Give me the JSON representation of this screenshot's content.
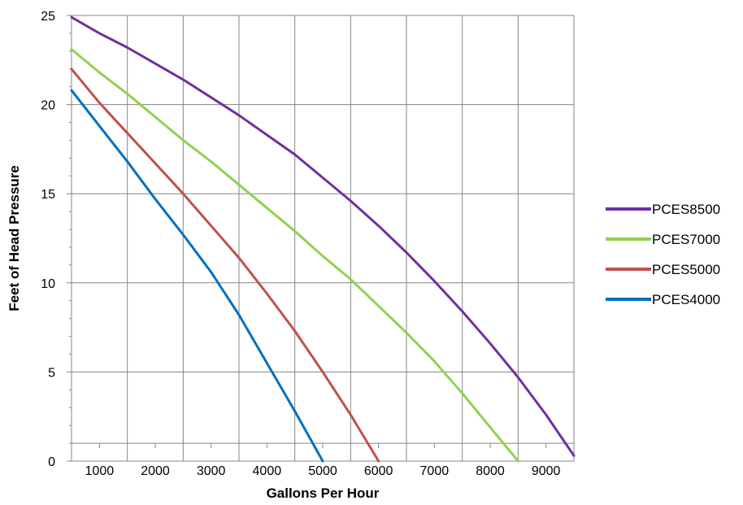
{
  "chart_data": {
    "type": "line",
    "title": "",
    "xlabel": "Gallons Per Hour",
    "ylabel": "Feet of Head Pressure",
    "xlim": [
      500,
      9500
    ],
    "ylim": [
      0,
      25
    ],
    "x_ticks": [
      1000,
      2000,
      3000,
      4000,
      5000,
      6000,
      7000,
      8000,
      9000
    ],
    "y_ticks": [
      0,
      5,
      10,
      15,
      20,
      25
    ],
    "grid": true,
    "legend_position": "right",
    "series": [
      {
        "name": "PCES8500",
        "color": "#7030a0",
        "points": [
          [
            500,
            24.9
          ],
          [
            1000,
            24.0
          ],
          [
            1500,
            23.2
          ],
          [
            2000,
            22.3
          ],
          [
            2500,
            21.4
          ],
          [
            3000,
            20.4
          ],
          [
            3500,
            19.4
          ],
          [
            4000,
            18.3
          ],
          [
            4500,
            17.2
          ],
          [
            5000,
            15.9
          ],
          [
            5500,
            14.6
          ],
          [
            6000,
            13.2
          ],
          [
            6500,
            11.7
          ],
          [
            7000,
            10.1
          ],
          [
            7500,
            8.4
          ],
          [
            8000,
            6.6
          ],
          [
            8500,
            4.7
          ],
          [
            9000,
            2.6
          ],
          [
            9500,
            0.3
          ]
        ]
      },
      {
        "name": "PCES7000",
        "color": "#92d050",
        "points": [
          [
            500,
            23.1
          ],
          [
            1000,
            21.8
          ],
          [
            1500,
            20.6
          ],
          [
            2000,
            19.3
          ],
          [
            2500,
            18.0
          ],
          [
            3000,
            16.8
          ],
          [
            3500,
            15.5
          ],
          [
            4000,
            14.2
          ],
          [
            4500,
            12.9
          ],
          [
            5000,
            11.5
          ],
          [
            5500,
            10.2
          ],
          [
            6000,
            8.7
          ],
          [
            6500,
            7.2
          ],
          [
            7000,
            5.6
          ],
          [
            7500,
            3.8
          ],
          [
            8000,
            1.9
          ],
          [
            8500,
            0.0
          ]
        ]
      },
      {
        "name": "PCES5000",
        "color": "#c0504d",
        "points": [
          [
            500,
            22.0
          ],
          [
            1000,
            20.1
          ],
          [
            1500,
            18.4
          ],
          [
            2000,
            16.7
          ],
          [
            2500,
            15.0
          ],
          [
            3000,
            13.2
          ],
          [
            3500,
            11.4
          ],
          [
            4000,
            9.4
          ],
          [
            4500,
            7.3
          ],
          [
            5000,
            5.0
          ],
          [
            5500,
            2.6
          ],
          [
            6000,
            0.0
          ]
        ]
      },
      {
        "name": "PCES4000",
        "color": "#0070c0",
        "points": [
          [
            500,
            20.8
          ],
          [
            1000,
            18.8
          ],
          [
            1500,
            16.8
          ],
          [
            2000,
            14.7
          ],
          [
            2500,
            12.7
          ],
          [
            3000,
            10.6
          ],
          [
            3500,
            8.2
          ],
          [
            4000,
            5.5
          ],
          [
            4500,
            2.8
          ],
          [
            5000,
            0.0
          ]
        ]
      }
    ]
  }
}
